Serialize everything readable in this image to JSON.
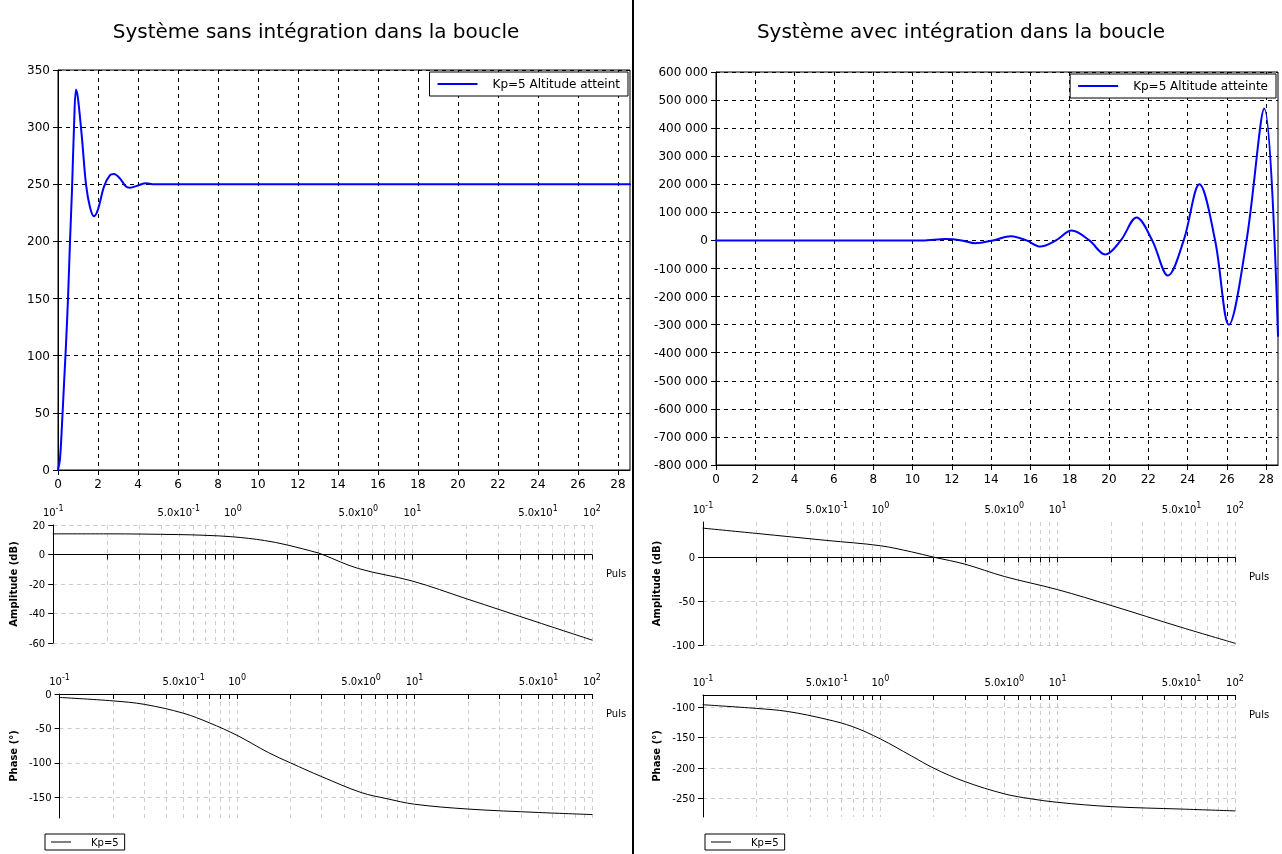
{
  "chart_data": [
    {
      "type": "line",
      "title": "Système sans intégration dans la boucle",
      "xlim": [
        0,
        28.6
      ],
      "xticks": [
        0,
        2,
        4,
        6,
        8,
        10,
        12,
        14,
        16,
        18,
        20,
        22,
        24,
        26,
        28
      ],
      "ylim": [
        0,
        350
      ],
      "yticks": [
        0,
        50,
        100,
        150,
        200,
        250,
        300,
        350
      ],
      "grid": true,
      "legend": "top right",
      "marker": "none",
      "x": [
        0,
        0.1,
        0.2,
        0.3,
        0.4,
        0.5,
        0.6,
        0.7,
        0.8,
        0.9,
        1.0,
        1.2,
        1.4,
        1.6,
        1.8,
        2.0,
        2.3,
        2.6,
        2.8,
        3.1,
        3.4,
        3.6,
        4.0,
        4.4,
        4.8,
        5,
        10,
        20,
        28.6
      ],
      "series": [
        {
          "name": "Kp=5 Altitude atteint",
          "color": "#0000ff",
          "values": [
            0,
            10,
            40,
            75,
            110,
            150,
            200,
            245,
            300,
            333,
            325,
            290,
            250,
            230,
            222,
            228,
            248,
            258,
            259,
            255,
            248,
            247,
            249,
            251,
            250,
            250,
            250,
            250,
            250
          ]
        }
      ]
    },
    {
      "type": "line",
      "title": "Système avec intégration dans la boucle",
      "xlim": [
        0,
        28.6
      ],
      "xticks": [
        0,
        2,
        4,
        6,
        8,
        10,
        12,
        14,
        16,
        18,
        20,
        22,
        24,
        26,
        28
      ],
      "ylim": [
        -800000,
        600000
      ],
      "yticks": [
        {
          "value": -800000,
          "label": "-800 000"
        },
        {
          "value": -700000,
          "label": "-700 000"
        },
        {
          "value": -600000,
          "label": "-600 000"
        },
        {
          "value": -500000,
          "label": "-500 000"
        },
        {
          "value": -400000,
          "label": "-400 000"
        },
        {
          "value": -300000,
          "label": "-300 000"
        },
        {
          "value": -200000,
          "label": "-200 000"
        },
        {
          "value": -100000,
          "label": "-100 000"
        },
        {
          "value": 0,
          "label": "0"
        },
        {
          "value": 100000,
          "label": "100 000"
        },
        {
          "value": 200000,
          "label": "200 000"
        },
        {
          "value": 300000,
          "label": "300 000"
        },
        {
          "value": 400000,
          "label": "400 000"
        },
        {
          "value": 500000,
          "label": "500 000"
        },
        {
          "value": 600000,
          "label": "600 000"
        }
      ],
      "grid": true,
      "legend": "top right",
      "marker": "none",
      "x": [
        0,
        5,
        6.5,
        8,
        9.5,
        10.5,
        11.7,
        12.5,
        13.2,
        14.1,
        15,
        15.8,
        16.5,
        17.3,
        18.1,
        19,
        19.8,
        20.6,
        21.4,
        22.2,
        23,
        23.8,
        24.6,
        25.4,
        26.1,
        27,
        27.9,
        28.6
      ],
      "series": [
        {
          "name": "Kp=5 Altitude atteinte",
          "color": "#0000ff",
          "values": [
            0,
            0,
            0,
            0,
            0,
            0,
            5000,
            0,
            -10000,
            0,
            15000,
            0,
            -22000,
            0,
            35000,
            0,
            -50000,
            0,
            82000,
            0,
            -125000,
            0,
            200000,
            0,
            -300000,
            0,
            470000,
            -340000
          ]
        }
      ]
    },
    {
      "type": "line",
      "xlabel": "Puls",
      "ylabel": "Amplitude (dB)",
      "log": "x",
      "xlim": [
        0.1,
        100
      ],
      "xticks": [
        {
          "value": 0.1,
          "label": "10$^{-1}$"
        },
        {
          "value": 0.2,
          "label": null
        },
        {
          "value": 0.3,
          "label": null
        },
        {
          "value": 0.4,
          "label": null
        },
        {
          "value": 0.5,
          "label": "5.0x10$^{-1}$"
        },
        {
          "value": 0.6,
          "label": null
        },
        {
          "value": 0.7,
          "label": null
        },
        {
          "value": 0.8,
          "label": null
        },
        {
          "value": 0.9,
          "label": null
        },
        {
          "value": 1,
          "label": "10$^{0}$"
        },
        {
          "value": 2,
          "label": null
        },
        {
          "value": 3,
          "label": null
        },
        {
          "value": 4,
          "label": null
        },
        {
          "value": 5,
          "label": "5.0x10$^{0}$"
        },
        {
          "value": 6,
          "label": null
        },
        {
          "value": 7,
          "label": null
        },
        {
          "value": 8,
          "label": null
        },
        {
          "value": 9,
          "label": null
        },
        {
          "value": 10,
          "label": "10$^{1}$"
        },
        {
          "value": 20,
          "label": null
        },
        {
          "value": 30,
          "label": null
        },
        {
          "value": 40,
          "label": null
        },
        {
          "value": 50,
          "label": "5.0x10$^{1}$"
        },
        {
          "value": 60,
          "label": null
        },
        {
          "value": 70,
          "label": null
        },
        {
          "value": 80,
          "label": null
        },
        {
          "value": 90,
          "label": null
        },
        {
          "value": 100,
          "label": "10$^{2}$"
        }
      ],
      "ylim": [
        -60,
        20
      ],
      "yticks": [
        -60,
        -40,
        -20,
        0,
        20
      ],
      "grid": true,
      "marker": "none",
      "x": [
        0.1,
        0.2,
        0.5,
        0.7,
        1,
        1.5,
        2,
        3,
        3.16,
        5,
        10,
        20,
        50,
        100
      ],
      "series": [
        {
          "color": "#000000",
          "values": [
            14,
            14,
            13.5,
            13,
            12,
            9.5,
            6.5,
            1,
            0,
            -9.5,
            -18,
            -30,
            -46,
            -58
          ]
        }
      ]
    },
    {
      "type": "line",
      "xlabel": "Puls",
      "ylabel": "Amplitude (dB)",
      "log": "x",
      "xlim": [
        0.1,
        100
      ],
      "xticks": [
        {
          "value": 0.1,
          "label": "10$^{-1}$"
        },
        {
          "value": 0.2,
          "label": null
        },
        {
          "value": 0.3,
          "label": null
        },
        {
          "value": 0.4,
          "label": null
        },
        {
          "value": 0.5,
          "label": "5.0x10$^{-1}$"
        },
        {
          "value": 0.6,
          "label": null
        },
        {
          "value": 0.7,
          "label": null
        },
        {
          "value": 0.8,
          "label": null
        },
        {
          "value": 0.9,
          "label": null
        },
        {
          "value": 1,
          "label": "10$^{0}$"
        },
        {
          "value": 2,
          "label": null
        },
        {
          "value": 3,
          "label": null
        },
        {
          "value": 4,
          "label": null
        },
        {
          "value": 5,
          "label": "5.0x10$^{0}$"
        },
        {
          "value": 6,
          "label": null
        },
        {
          "value": 7,
          "label": null
        },
        {
          "value": 8,
          "label": null
        },
        {
          "value": 9,
          "label": null
        },
        {
          "value": 10,
          "label": "10$^{1}$"
        },
        {
          "value": 20,
          "label": null
        },
        {
          "value": 30,
          "label": null
        },
        {
          "value": 40,
          "label": null
        },
        {
          "value": 50,
          "label": "5.0x10$^{1}$"
        },
        {
          "value": 60,
          "label": null
        },
        {
          "value": 70,
          "label": null
        },
        {
          "value": 80,
          "label": null
        },
        {
          "value": 90,
          "label": null
        },
        {
          "value": 100,
          "label": "10$^{2}$"
        }
      ],
      "ylim": [
        -100,
        40
      ],
      "yticks": [
        -100,
        -50,
        0
      ],
      "grid": true,
      "marker": "none",
      "x": [
        0.1,
        0.2,
        0.5,
        1,
        1.5,
        2,
        3,
        5,
        10,
        20,
        50,
        100
      ],
      "series": [
        {
          "color": "#000000",
          "values": [
            33,
            27,
            19,
            13,
            6,
            0,
            -8,
            -22,
            -37,
            -55,
            -80,
            -98
          ]
        }
      ]
    },
    {
      "type": "line",
      "xlabel": "Puls",
      "ylabel": "Phase (°)",
      "log": "x",
      "xlim": [
        0.1,
        100
      ],
      "xticks": [
        {
          "value": 0.1,
          "label": "10$^{-1}$"
        },
        {
          "value": 0.2,
          "label": null
        },
        {
          "value": 0.3,
          "label": null
        },
        {
          "value": 0.4,
          "label": null
        },
        {
          "value": 0.5,
          "label": "5.0x10$^{-1}$"
        },
        {
          "value": 0.6,
          "label": null
        },
        {
          "value": 0.7,
          "label": null
        },
        {
          "value": 0.8,
          "label": null
        },
        {
          "value": 0.9,
          "label": null
        },
        {
          "value": 1,
          "label": "10$^{0}$"
        },
        {
          "value": 2,
          "label": null
        },
        {
          "value": 3,
          "label": null
        },
        {
          "value": 4,
          "label": null
        },
        {
          "value": 5,
          "label": "5.0x10$^{0}$"
        },
        {
          "value": 6,
          "label": null
        },
        {
          "value": 7,
          "label": null
        },
        {
          "value": 8,
          "label": null
        },
        {
          "value": 9,
          "label": null
        },
        {
          "value": 10,
          "label": "10$^{1}$"
        },
        {
          "value": 20,
          "label": null
        },
        {
          "value": 30,
          "label": null
        },
        {
          "value": 40,
          "label": null
        },
        {
          "value": 50,
          "label": "5.0x10$^{1}$"
        },
        {
          "value": 60,
          "label": null
        },
        {
          "value": 70,
          "label": null
        },
        {
          "value": 80,
          "label": null
        },
        {
          "value": 90,
          "label": null
        },
        {
          "value": 100,
          "label": "10$^{2}$"
        }
      ],
      "ylim": [
        -180,
        0
      ],
      "yticks": [
        -150,
        -100,
        -50,
        0
      ],
      "grid": true,
      "legend": "bottom left",
      "marker": "none",
      "x": [
        0.1,
        0.2,
        0.3,
        0.5,
        0.7,
        1,
        1.5,
        2,
        3,
        5,
        7,
        10,
        20,
        50,
        100
      ],
      "series": [
        {
          "name": "Kp=5",
          "color": "#000000",
          "values": [
            -5,
            -10,
            -15,
            -28,
            -42,
            -60,
            -85,
            -100,
            -120,
            -143,
            -152,
            -160,
            -167,
            -172,
            -175
          ]
        }
      ]
    },
    {
      "type": "line",
      "xlabel": "Puls",
      "ylabel": "Phase (°)",
      "log": "x",
      "xlim": [
        0.1,
        100
      ],
      "xticks": [
        {
          "value": 0.1,
          "label": "10$^{-1}$"
        },
        {
          "value": 0.2,
          "label": null
        },
        {
          "value": 0.3,
          "label": null
        },
        {
          "value": 0.4,
          "label": null
        },
        {
          "value": 0.5,
          "label": "5.0x10$^{-1}$"
        },
        {
          "value": 0.6,
          "label": null
        },
        {
          "value": 0.7,
          "label": null
        },
        {
          "value": 0.8,
          "label": null
        },
        {
          "value": 0.9,
          "label": null
        },
        {
          "value": 1,
          "label": "10$^{0}$"
        },
        {
          "value": 2,
          "label": null
        },
        {
          "value": 3,
          "label": null
        },
        {
          "value": 4,
          "label": null
        },
        {
          "value": 5,
          "label": "5.0x10$^{0}$"
        },
        {
          "value": 6,
          "label": null
        },
        {
          "value": 7,
          "label": null
        },
        {
          "value": 8,
          "label": null
        },
        {
          "value": 9,
          "label": null
        },
        {
          "value": 10,
          "label": "10$^{1}$"
        },
        {
          "value": 20,
          "label": null
        },
        {
          "value": 30,
          "label": null
        },
        {
          "value": 40,
          "label": null
        },
        {
          "value": 50,
          "label": "5.0x10$^{1}$"
        },
        {
          "value": 60,
          "label": null
        },
        {
          "value": 70,
          "label": null
        },
        {
          "value": 80,
          "label": null
        },
        {
          "value": 90,
          "label": null
        },
        {
          "value": 100,
          "label": "10$^{2}$"
        }
      ],
      "ylim": [
        -280,
        -80
      ],
      "yticks": [
        -250,
        -200,
        -150,
        -100
      ],
      "grid": true,
      "legend": "bottom left",
      "marker": "none",
      "x": [
        0.1,
        0.2,
        0.3,
        0.5,
        0.7,
        1,
        1.5,
        2,
        3,
        5,
        7,
        10,
        20,
        50,
        100
      ],
      "series": [
        {
          "name": "Kp=5",
          "color": "#000000",
          "values": [
            -96,
            -102,
            -107,
            -120,
            -132,
            -152,
            -180,
            -200,
            -222,
            -242,
            -250,
            -256,
            -263,
            -267,
            -270
          ]
        }
      ]
    }
  ]
}
